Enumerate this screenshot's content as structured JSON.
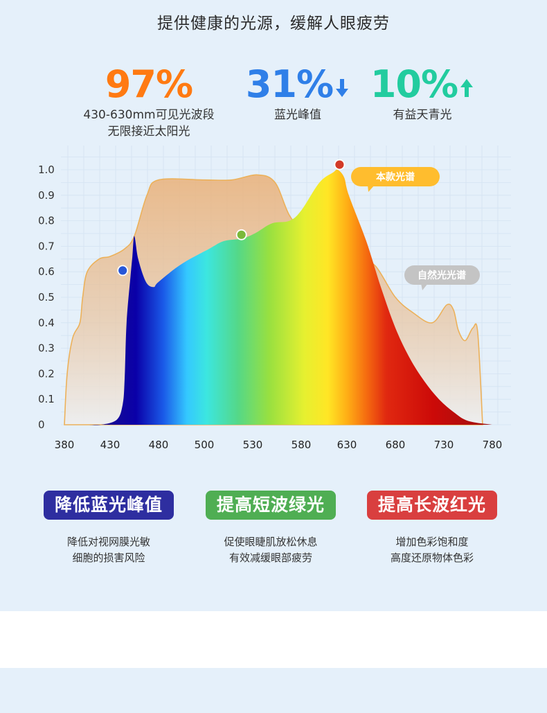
{
  "headline": "提供健康的光源，缓解人眼疲劳",
  "stats": [
    {
      "value": "97%",
      "lines": [
        "430-630mm可见光波段",
        "无限接近太阳光"
      ],
      "color": "#ff7a12",
      "arrow": "none"
    },
    {
      "value": "31%",
      "lines": [
        "蓝光峰值"
      ],
      "color": "#2f7fe8",
      "arrow": "down-arrow-icon"
    },
    {
      "value": "10%",
      "lines": [
        "有益天青光"
      ],
      "color": "#22cc9f",
      "arrow": "up-arrow-icon"
    }
  ],
  "chart_data": {
    "type": "area",
    "title": "",
    "xlabel": "",
    "ylabel": "",
    "x_tick_labels": [
      "380",
      "430",
      "480",
      "500",
      "530",
      "580",
      "630",
      "680",
      "730",
      "780"
    ],
    "y_tick_labels": [
      "0",
      "0.1",
      "0.2",
      "0.3",
      "0.4",
      "0.5",
      "0.6",
      "0.7",
      "0.8",
      "0.9",
      "1.0"
    ],
    "ylim": [
      0,
      1.0
    ],
    "grid": true,
    "legend_labels": {
      "product": "本款光谱",
      "natural": "自然光光谱"
    },
    "series": [
      {
        "name": "本款光谱",
        "x": [
          380,
          405,
          420,
          437,
          443,
          445,
          447,
          451,
          453,
          455,
          459,
          467,
          475,
          480,
          490,
          503,
          512,
          523,
          532,
          550,
          568,
          580,
          600,
          615,
          620,
          627,
          632,
          650,
          665,
          680,
          695,
          710,
          725,
          740,
          755,
          780
        ],
        "y": [
          0,
          0,
          0,
          0.02,
          0.08,
          0.18,
          0.4,
          0.58,
          0.66,
          0.74,
          0.65,
          0.56,
          0.54,
          0.56,
          0.63,
          0.69,
          0.72,
          0.73,
          0.75,
          0.79,
          0.8,
          0.84,
          0.95,
          0.99,
          1.0,
          0.97,
          0.9,
          0.72,
          0.54,
          0.38,
          0.26,
          0.17,
          0.1,
          0.05,
          0.015,
          0
        ],
        "markers": [
          {
            "x": 443,
            "y": 0.605,
            "color": "#2756d8"
          },
          {
            "x": 523,
            "y": 0.745,
            "color": "#7ab93a"
          },
          {
            "x": 622,
            "y": 1.02,
            "color": "#d23a27"
          }
        ]
      },
      {
        "name": "自然光光谱",
        "x": [
          380,
          383,
          389,
          397,
          400,
          405,
          418,
          430,
          445,
          455,
          468,
          480,
          500,
          517,
          535,
          553,
          568,
          585,
          605,
          625,
          645,
          660,
          680,
          698,
          718,
          733,
          740,
          745,
          752,
          760,
          765,
          770
        ],
        "y": [
          0,
          0.2,
          0.34,
          0.4,
          0.5,
          0.6,
          0.65,
          0.66,
          0.69,
          0.74,
          0.9,
          0.96,
          0.96,
          0.96,
          0.98,
          0.95,
          0.82,
          0.75,
          0.71,
          0.69,
          0.65,
          0.62,
          0.5,
          0.44,
          0.4,
          0.47,
          0.45,
          0.37,
          0.33,
          0.38,
          0.36,
          0
        ]
      }
    ]
  },
  "features": [
    {
      "title": "降低蓝光峰值",
      "lines": [
        "降低对视网膜光敏",
        "细胞的损害风险"
      ],
      "color": "#2e2ea0"
    },
    {
      "title": "提高短波绿光",
      "lines": [
        "促使眼睫肌放松休息",
        "有效减缓眼部疲劳"
      ],
      "color": "#4fae53"
    },
    {
      "title": "提高长波红光",
      "lines": [
        "增加色彩饱和度",
        "高度还原物体色彩"
      ],
      "color": "#d93f3f"
    }
  ]
}
